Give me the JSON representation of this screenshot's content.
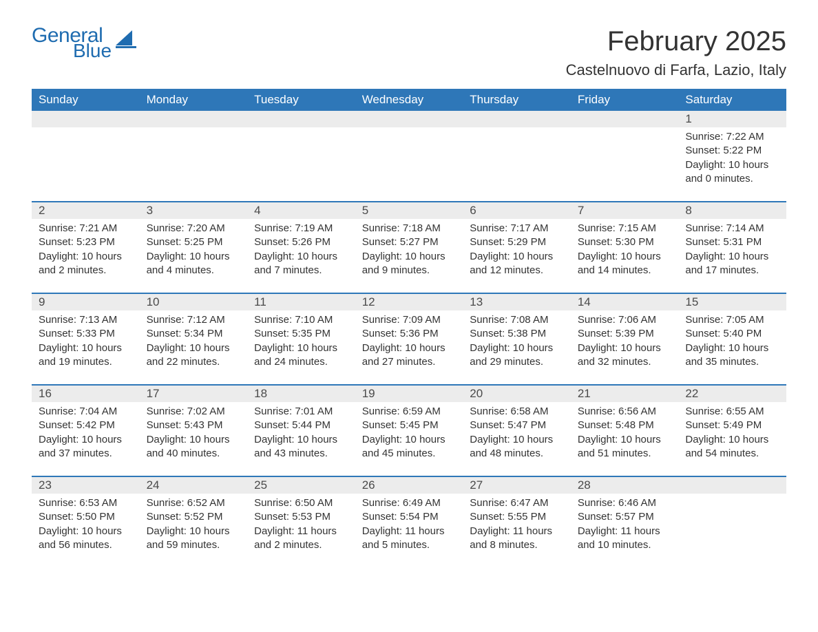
{
  "logo": {
    "general": "General",
    "blue": "Blue",
    "brand_color": "#1f6cb0"
  },
  "header": {
    "title": "February 2025",
    "location": "Castelnuovo di Farfa, Lazio, Italy"
  },
  "colors": {
    "header_bg": "#2e77b8",
    "header_text": "#ffffff",
    "row_stripe": "#ececec",
    "text": "#333333",
    "rule": "#2e77b8"
  },
  "dayHeaders": [
    "Sunday",
    "Monday",
    "Tuesday",
    "Wednesday",
    "Thursday",
    "Friday",
    "Saturday"
  ],
  "weeks": [
    [
      null,
      null,
      null,
      null,
      null,
      null,
      {
        "n": "1",
        "sr": "Sunrise: 7:22 AM",
        "ss": "Sunset: 5:22 PM",
        "dl": "Daylight: 10 hours and 0 minutes."
      }
    ],
    [
      {
        "n": "2",
        "sr": "Sunrise: 7:21 AM",
        "ss": "Sunset: 5:23 PM",
        "dl": "Daylight: 10 hours and 2 minutes."
      },
      {
        "n": "3",
        "sr": "Sunrise: 7:20 AM",
        "ss": "Sunset: 5:25 PM",
        "dl": "Daylight: 10 hours and 4 minutes."
      },
      {
        "n": "4",
        "sr": "Sunrise: 7:19 AM",
        "ss": "Sunset: 5:26 PM",
        "dl": "Daylight: 10 hours and 7 minutes."
      },
      {
        "n": "5",
        "sr": "Sunrise: 7:18 AM",
        "ss": "Sunset: 5:27 PM",
        "dl": "Daylight: 10 hours and 9 minutes."
      },
      {
        "n": "6",
        "sr": "Sunrise: 7:17 AM",
        "ss": "Sunset: 5:29 PM",
        "dl": "Daylight: 10 hours and 12 minutes."
      },
      {
        "n": "7",
        "sr": "Sunrise: 7:15 AM",
        "ss": "Sunset: 5:30 PM",
        "dl": "Daylight: 10 hours and 14 minutes."
      },
      {
        "n": "8",
        "sr": "Sunrise: 7:14 AM",
        "ss": "Sunset: 5:31 PM",
        "dl": "Daylight: 10 hours and 17 minutes."
      }
    ],
    [
      {
        "n": "9",
        "sr": "Sunrise: 7:13 AM",
        "ss": "Sunset: 5:33 PM",
        "dl": "Daylight: 10 hours and 19 minutes."
      },
      {
        "n": "10",
        "sr": "Sunrise: 7:12 AM",
        "ss": "Sunset: 5:34 PM",
        "dl": "Daylight: 10 hours and 22 minutes."
      },
      {
        "n": "11",
        "sr": "Sunrise: 7:10 AM",
        "ss": "Sunset: 5:35 PM",
        "dl": "Daylight: 10 hours and 24 minutes."
      },
      {
        "n": "12",
        "sr": "Sunrise: 7:09 AM",
        "ss": "Sunset: 5:36 PM",
        "dl": "Daylight: 10 hours and 27 minutes."
      },
      {
        "n": "13",
        "sr": "Sunrise: 7:08 AM",
        "ss": "Sunset: 5:38 PM",
        "dl": "Daylight: 10 hours and 29 minutes."
      },
      {
        "n": "14",
        "sr": "Sunrise: 7:06 AM",
        "ss": "Sunset: 5:39 PM",
        "dl": "Daylight: 10 hours and 32 minutes."
      },
      {
        "n": "15",
        "sr": "Sunrise: 7:05 AM",
        "ss": "Sunset: 5:40 PM",
        "dl": "Daylight: 10 hours and 35 minutes."
      }
    ],
    [
      {
        "n": "16",
        "sr": "Sunrise: 7:04 AM",
        "ss": "Sunset: 5:42 PM",
        "dl": "Daylight: 10 hours and 37 minutes."
      },
      {
        "n": "17",
        "sr": "Sunrise: 7:02 AM",
        "ss": "Sunset: 5:43 PM",
        "dl": "Daylight: 10 hours and 40 minutes."
      },
      {
        "n": "18",
        "sr": "Sunrise: 7:01 AM",
        "ss": "Sunset: 5:44 PM",
        "dl": "Daylight: 10 hours and 43 minutes."
      },
      {
        "n": "19",
        "sr": "Sunrise: 6:59 AM",
        "ss": "Sunset: 5:45 PM",
        "dl": "Daylight: 10 hours and 45 minutes."
      },
      {
        "n": "20",
        "sr": "Sunrise: 6:58 AM",
        "ss": "Sunset: 5:47 PM",
        "dl": "Daylight: 10 hours and 48 minutes."
      },
      {
        "n": "21",
        "sr": "Sunrise: 6:56 AM",
        "ss": "Sunset: 5:48 PM",
        "dl": "Daylight: 10 hours and 51 minutes."
      },
      {
        "n": "22",
        "sr": "Sunrise: 6:55 AM",
        "ss": "Sunset: 5:49 PM",
        "dl": "Daylight: 10 hours and 54 minutes."
      }
    ],
    [
      {
        "n": "23",
        "sr": "Sunrise: 6:53 AM",
        "ss": "Sunset: 5:50 PM",
        "dl": "Daylight: 10 hours and 56 minutes."
      },
      {
        "n": "24",
        "sr": "Sunrise: 6:52 AM",
        "ss": "Sunset: 5:52 PM",
        "dl": "Daylight: 10 hours and 59 minutes."
      },
      {
        "n": "25",
        "sr": "Sunrise: 6:50 AM",
        "ss": "Sunset: 5:53 PM",
        "dl": "Daylight: 11 hours and 2 minutes."
      },
      {
        "n": "26",
        "sr": "Sunrise: 6:49 AM",
        "ss": "Sunset: 5:54 PM",
        "dl": "Daylight: 11 hours and 5 minutes."
      },
      {
        "n": "27",
        "sr": "Sunrise: 6:47 AM",
        "ss": "Sunset: 5:55 PM",
        "dl": "Daylight: 11 hours and 8 minutes."
      },
      {
        "n": "28",
        "sr": "Sunrise: 6:46 AM",
        "ss": "Sunset: 5:57 PM",
        "dl": "Daylight: 11 hours and 10 minutes."
      },
      null
    ]
  ]
}
